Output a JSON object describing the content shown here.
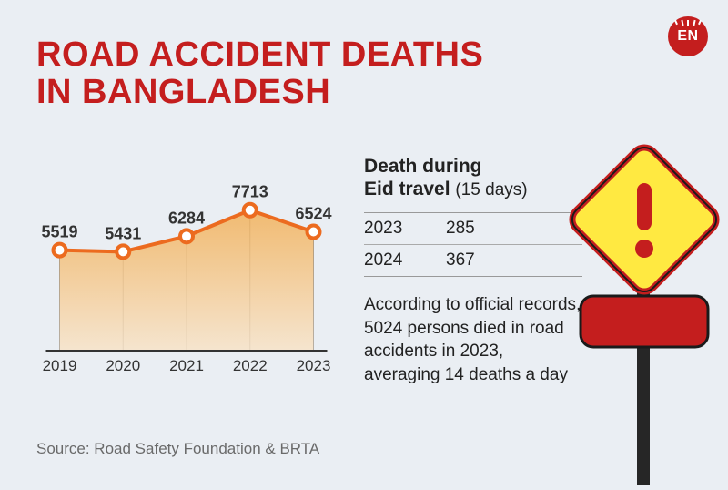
{
  "logo": {
    "text": "EN"
  },
  "title": {
    "line1": "ROAD ACCIDENT DEATHS",
    "line2": "IN BANGLADESH",
    "color": "#c41e1e",
    "fontsize": 38
  },
  "chart": {
    "type": "line-area",
    "years": [
      "2019",
      "2020",
      "2021",
      "2022",
      "2023"
    ],
    "values": [
      5519,
      5431,
      6284,
      7713,
      6524
    ],
    "ylim": [
      0,
      8500
    ],
    "line_color": "#ec6b1f",
    "line_width": 4,
    "marker_color": "#ec6b1f",
    "marker_fill": "#ffffff",
    "marker_radius": 7,
    "area_top_color": "#f2b15a",
    "area_bottom_color": "#f7e3c8",
    "grid_color": "#888888",
    "baseline_color": "#333333",
    "label_fontsize": 18,
    "xaxis_fontsize": 17,
    "label_color": "#333333"
  },
  "eid": {
    "heading_line1": "Death during",
    "heading_line2": "Eid travel",
    "heading_note": "(15 days)",
    "rows": [
      {
        "year": "2023",
        "value": "285"
      },
      {
        "year": "2024",
        "value": "367"
      }
    ],
    "heading_fontsize": 21,
    "row_fontsize": 19,
    "text_color": "#222222",
    "border_color": "#999999"
  },
  "blurb": {
    "text": "According to official records, 5024 persons died in road accidents in 2023, averaging 14 deaths a day",
    "fontsize": 19,
    "color": "#222222"
  },
  "source": {
    "text": "Source: Road Safety Foundation & BRTA",
    "fontsize": 17,
    "color": "#6a6a6a"
  },
  "sign": {
    "diamond_fill": "#ffe941",
    "diamond_stroke": "#c41e1e",
    "mark_color": "#c41e1e",
    "panel_fill": "#c41e1e",
    "pole_color": "#262626"
  },
  "background_color": "#eaeef3"
}
